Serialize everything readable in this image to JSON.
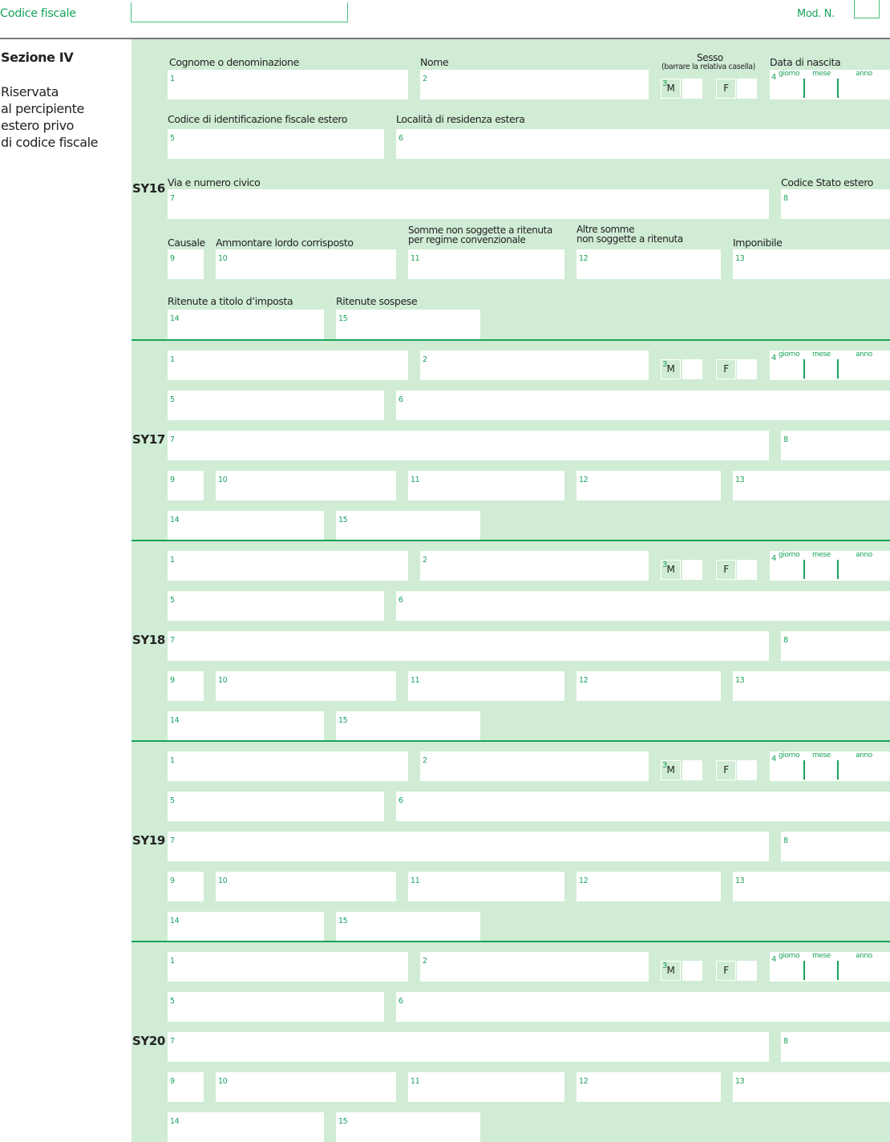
{
  "header": {
    "codice_fiscale_label": "Codice fiscale",
    "codice_fiscale_value": "",
    "mod_n_label": "Mod. N.",
    "mod_n_value": ""
  },
  "section": {
    "title": "Sezione IV",
    "description_lines": [
      "Riservata",
      "al percipiente",
      "estero privo",
      "di codice fiscale"
    ]
  },
  "labels": {
    "f1": "Cognome o denominazione",
    "f2": "Nome",
    "sesso": "Sesso",
    "sesso_note": "(barrare la relativa casella)",
    "f4": "Data di nascita",
    "f5": "Codice di identificazione fiscale estero",
    "f6": "Località di residenza estera",
    "f7": "Via e numero civico",
    "f8": "Codice Stato estero",
    "f9": "Causale",
    "f10": "Ammontare lordo corrisposto",
    "f11_a": "Somme non soggette a ritenuta",
    "f11_b": "per regime convenzionale",
    "f12_a": "Altre somme",
    "f12_b": "non soggette a ritenuta",
    "f13": "Imponibile",
    "f14": "Ritenute a titolo d’imposta",
    "f15": "Ritenute sospese"
  },
  "date_parts": {
    "giorno": "giorno",
    "mese": "mese",
    "anno": "anno"
  },
  "sex_options": {
    "m": "M",
    "f": "F"
  },
  "field_numbers": {
    "f1": "1",
    "f2": "2",
    "f3": "3",
    "f4": "4",
    "f5": "5",
    "f6": "6",
    "f7": "7",
    "f8": "8",
    "f9": "9",
    "f10": "10",
    "f11": "11",
    "f12": "12",
    "f13": "13",
    "f14": "14",
    "f15": "15"
  },
  "rows": [
    {
      "code": "SY16"
    },
    {
      "code": "SY17"
    },
    {
      "code": "SY18"
    },
    {
      "code": "SY19"
    },
    {
      "code": "SY20"
    }
  ]
}
